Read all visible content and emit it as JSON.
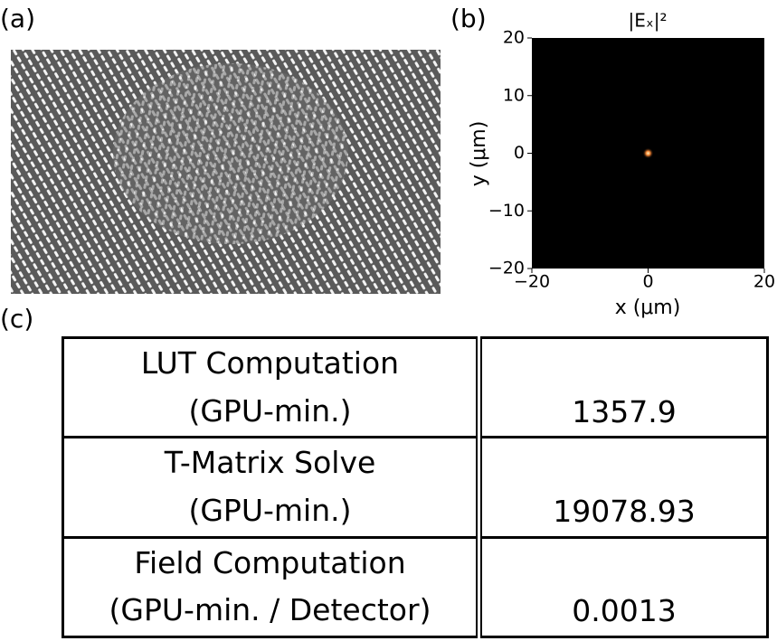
{
  "panels": {
    "a": {
      "label": "(a)"
    },
    "b": {
      "label": "(b)"
    },
    "c": {
      "label": "(c)"
    }
  },
  "chart_data": {
    "type": "heatmap",
    "title": "|Eₓ|²",
    "x_label": "x (μm)",
    "y_label": "y (μm)",
    "xlim": [
      -20,
      20
    ],
    "ylim": [
      -20,
      20
    ],
    "xticks": [
      {
        "value": -20,
        "label": "−20"
      },
      0,
      20
    ],
    "yticks": [
      {
        "value": -20,
        "label": "−20"
      },
      {
        "value": -10,
        "label": "−10"
      },
      0,
      10,
      20
    ]
  },
  "table": {
    "rows": [
      {
        "label": [
          "LUT Computation",
          "(GPU-min.)"
        ],
        "value": 1357.9
      },
      {
        "label": [
          "T-Matrix Solve",
          "(GPU-min.)"
        ],
        "value": 19078.93
      },
      {
        "label": [
          "Field Computation",
          "(GPU-min. / Detector)"
        ],
        "value": 0.0013
      }
    ]
  }
}
